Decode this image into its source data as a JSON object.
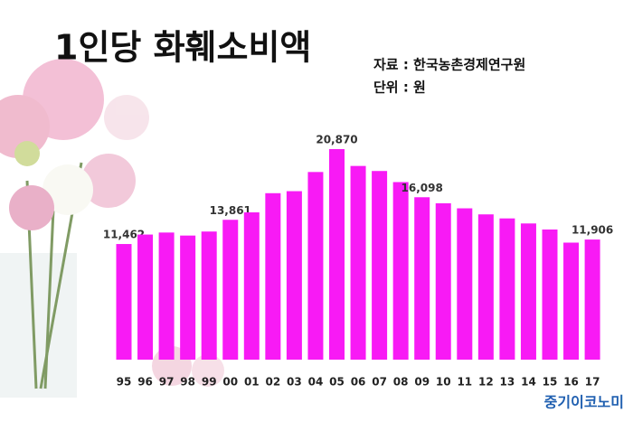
{
  "chart_data": {
    "type": "bar",
    "title": "1인당 화훼소비액",
    "source": "자료 : 한국농촌경제연구원",
    "unit": "단위 : 원",
    "watermark": "중기이코노미",
    "categories": [
      "95",
      "96",
      "97",
      "98",
      "99",
      "00",
      "01",
      "02",
      "03",
      "04",
      "05",
      "06",
      "07",
      "08",
      "09",
      "10",
      "11",
      "12",
      "13",
      "14",
      "15",
      "16",
      "17"
    ],
    "values": [
      11462,
      12400,
      12600,
      12300,
      12700,
      13861,
      14600,
      16500,
      16700,
      18600,
      20870,
      19200,
      18700,
      17600,
      16098,
      15500,
      15000,
      14400,
      14000,
      13500,
      12900,
      11600,
      11906
    ],
    "value_labels": [
      "11,462",
      null,
      null,
      null,
      null,
      "13,861",
      null,
      null,
      null,
      null,
      "20,870",
      null,
      null,
      null,
      "16,098",
      null,
      null,
      null,
      null,
      null,
      null,
      null,
      "11,906"
    ],
    "color": "#f81af5"
  }
}
